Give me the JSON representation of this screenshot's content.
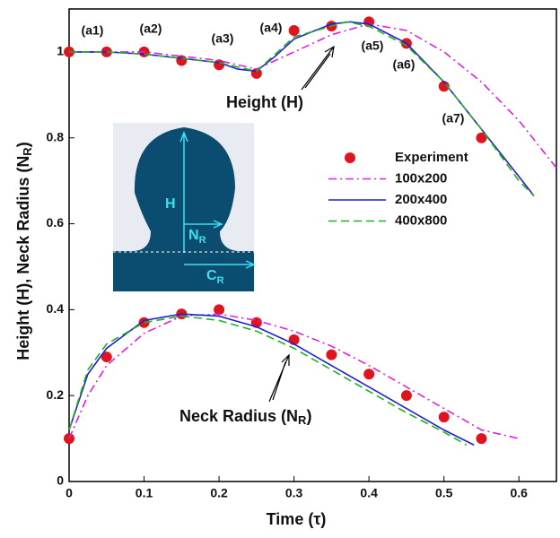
{
  "chart_data": {
    "type": "line",
    "x_label": "Time (τ)",
    "y_label": [
      "Height (H), Neck Radius (N",
      "R",
      ")"
    ],
    "xlim": [
      0,
      0.65
    ],
    "ylim": [
      0,
      1.1
    ],
    "xticks": [
      0,
      0.1,
      0.2,
      0.3,
      0.4,
      0.5,
      0.6
    ],
    "yticks": [
      0,
      0.2,
      0.4,
      0.6,
      0.8,
      1
    ],
    "grid": false,
    "annotations": [
      "(a1)",
      "(a2)",
      "(a3)",
      "(a4)",
      "(a5)",
      "(a6)",
      "(a7)",
      "Height (H)"
    ],
    "neck_annotation": [
      "Neck Radius (N",
      "R",
      ")"
    ],
    "series": [
      {
        "name": "Experiment",
        "color": "#e0141e",
        "style": "marker",
        "height": {
          "x": [
            0,
            0.05,
            0.1,
            0.15,
            0.2,
            0.25,
            0.3,
            0.35,
            0.4,
            0.45,
            0.5,
            0.55
          ],
          "values": [
            1,
            1,
            1,
            0.98,
            0.97,
            0.95,
            1.05,
            1.06,
            1.07,
            1.02,
            0.92,
            0.8
          ]
        },
        "neck_radius": {
          "x": [
            0,
            0.05,
            0.1,
            0.15,
            0.2,
            0.25,
            0.3,
            0.35,
            0.4,
            0.45,
            0.5,
            0.55
          ],
          "values": [
            0.1,
            0.29,
            0.37,
            0.39,
            0.4,
            0.37,
            0.33,
            0.295,
            0.25,
            0.2,
            0.15,
            0.1
          ]
        }
      },
      {
        "name": "100x200",
        "color": "#e020e0",
        "style": "dashdot",
        "height": {
          "x": [
            0,
            0.1,
            0.2,
            0.25,
            0.3,
            0.35,
            0.4,
            0.45,
            0.5,
            0.55,
            0.6,
            0.65
          ],
          "values": [
            1,
            1,
            0.98,
            0.96,
            1.0,
            1.04,
            1.065,
            1.05,
            1.0,
            0.93,
            0.84,
            0.73
          ]
        },
        "neck_radius": {
          "x": [
            0,
            0.025,
            0.05,
            0.1,
            0.15,
            0.2,
            0.25,
            0.3,
            0.35,
            0.4,
            0.45,
            0.5,
            0.55,
            0.6
          ],
          "values": [
            0.1,
            0.2,
            0.27,
            0.345,
            0.385,
            0.39,
            0.375,
            0.35,
            0.315,
            0.27,
            0.22,
            0.17,
            0.12,
            0.1
          ]
        }
      },
      {
        "name": "200x400",
        "color": "#2020d0",
        "style": "solid",
        "height": {
          "x": [
            0,
            0.05,
            0.1,
            0.15,
            0.2,
            0.225,
            0.25,
            0.275,
            0.3,
            0.35,
            0.375,
            0.4,
            0.45,
            0.5,
            0.55,
            0.6,
            0.62
          ],
          "values": [
            1,
            1,
            0.995,
            0.985,
            0.975,
            0.96,
            0.955,
            0.99,
            1.03,
            1.065,
            1.07,
            1.065,
            1.02,
            0.93,
            0.82,
            0.71,
            0.665
          ]
        },
        "neck_radius": {
          "x": [
            0,
            0.025,
            0.05,
            0.1,
            0.15,
            0.2,
            0.25,
            0.3,
            0.35,
            0.4,
            0.45,
            0.5,
            0.54
          ],
          "values": [
            0.12,
            0.25,
            0.31,
            0.375,
            0.39,
            0.385,
            0.36,
            0.32,
            0.27,
            0.22,
            0.17,
            0.12,
            0.085
          ]
        }
      },
      {
        "name": "400x800",
        "color": "#20b020",
        "style": "dashed",
        "height": {
          "x": [
            0,
            0.05,
            0.1,
            0.15,
            0.2,
            0.25,
            0.3,
            0.37,
            0.4,
            0.45,
            0.5,
            0.55,
            0.6,
            0.62
          ],
          "values": [
            1,
            1,
            0.995,
            0.985,
            0.975,
            0.955,
            1.035,
            1.07,
            1.06,
            1.015,
            0.93,
            0.82,
            0.7,
            0.665
          ]
        },
        "neck_radius": {
          "x": [
            0,
            0.025,
            0.05,
            0.1,
            0.15,
            0.2,
            0.25,
            0.3,
            0.35,
            0.4,
            0.45,
            0.5,
            0.53
          ],
          "values": [
            0.12,
            0.26,
            0.32,
            0.37,
            0.385,
            0.375,
            0.35,
            0.31,
            0.26,
            0.21,
            0.16,
            0.115,
            0.085
          ]
        }
      }
    ]
  },
  "inset": {
    "labels": [
      "H",
      [
        "N",
        "R"
      ],
      [
        "C",
        "R"
      ]
    ]
  }
}
